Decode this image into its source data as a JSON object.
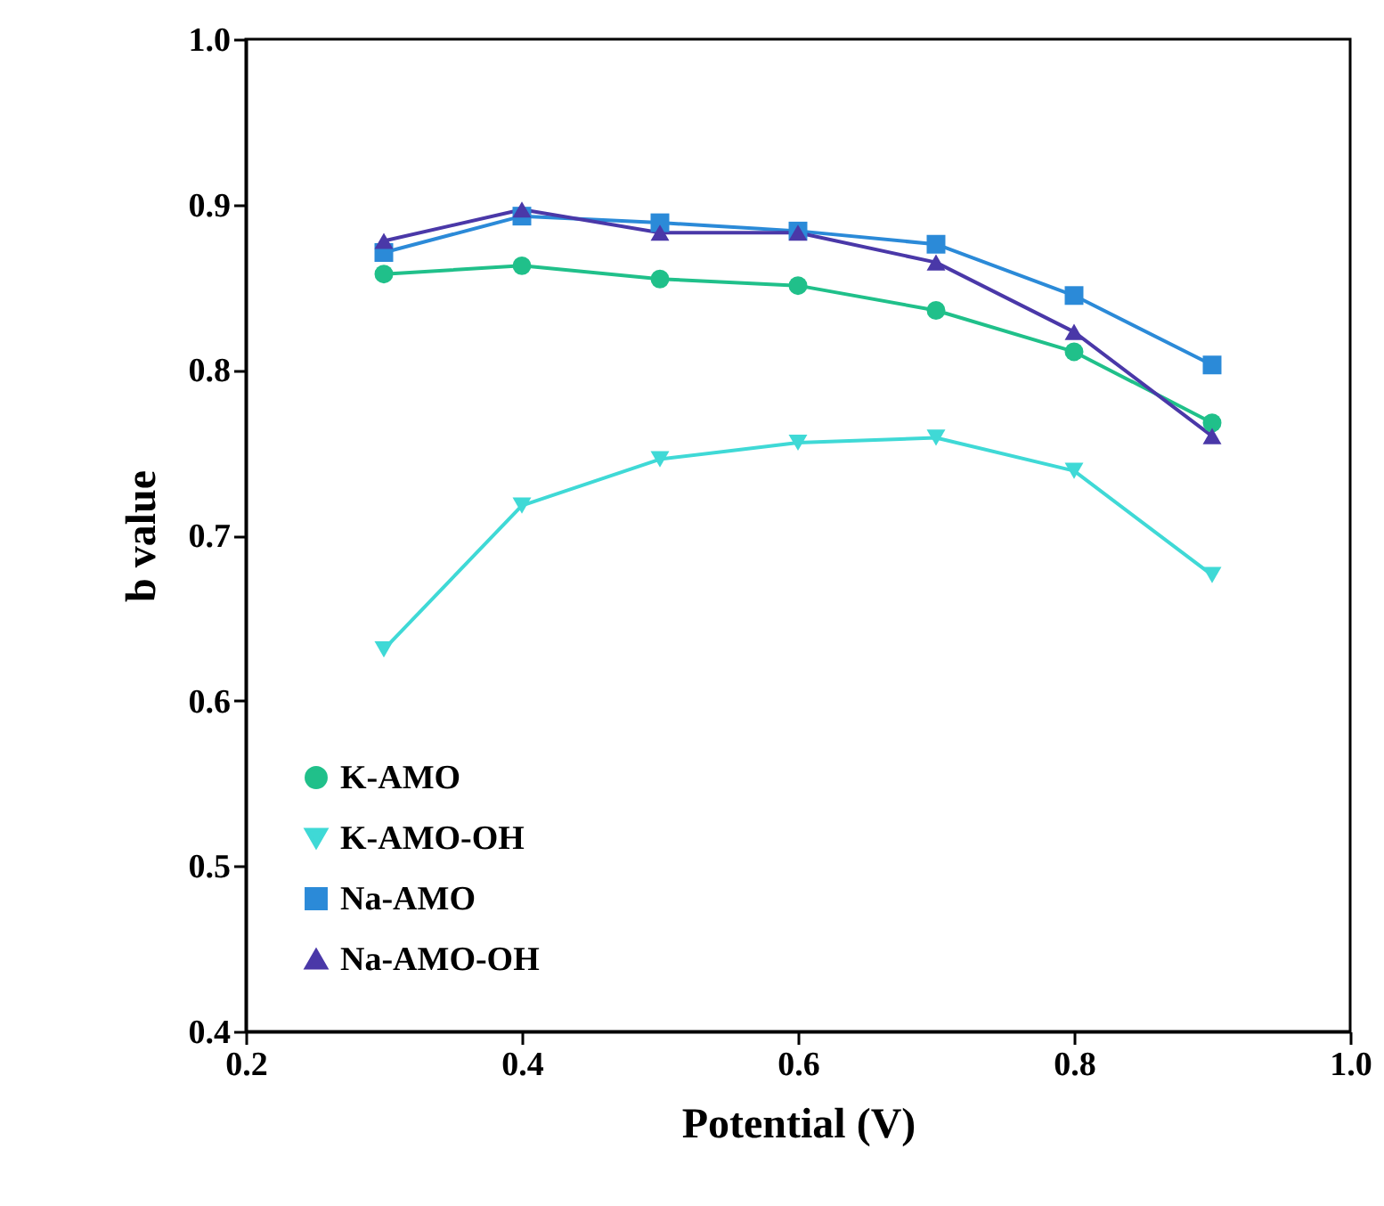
{
  "chart_data": {
    "type": "line",
    "xlabel": "Potential (V)",
    "ylabel": "b value",
    "x": [
      0.3,
      0.4,
      0.5,
      0.6,
      0.7,
      0.8,
      0.9
    ],
    "xlim": [
      0.2,
      1.0
    ],
    "xticks": [
      0.2,
      0.4,
      0.6,
      0.8,
      {
        "value": 1,
        "label": "1.0"
      }
    ],
    "ylim": [
      0.4,
      1.0
    ],
    "yticks": [
      0.4,
      0.5,
      0.6,
      0.7,
      0.8,
      0.9,
      {
        "value": 1,
        "label": "1.0"
      }
    ],
    "grid": false,
    "legend": "bottom left",
    "line_style": "solid",
    "series": [
      {
        "name": "K-AMO",
        "color": "#20c08a",
        "marker": "circle",
        "values": [
          0.858,
          0.863,
          0.855,
          0.851,
          0.836,
          0.811,
          0.768
        ]
      },
      {
        "name": "K-AMO-OH",
        "color": "#3fd9d6",
        "marker": "triangle-down",
        "values": [
          0.631,
          0.718,
          0.746,
          0.756,
          0.759,
          0.739,
          0.676
        ]
      },
      {
        "name": "Na-AMO",
        "color": "#2b8ad8",
        "marker": "square",
        "values": [
          0.871,
          0.893,
          0.889,
          0.884,
          0.876,
          0.845,
          0.803
        ]
      },
      {
        "name": "Na-AMO-OH",
        "color": "#4a38a8",
        "marker": "triangle-up",
        "values": [
          0.878,
          0.897,
          0.883,
          0.883,
          0.865,
          0.823,
          0.76
        ]
      }
    ]
  }
}
